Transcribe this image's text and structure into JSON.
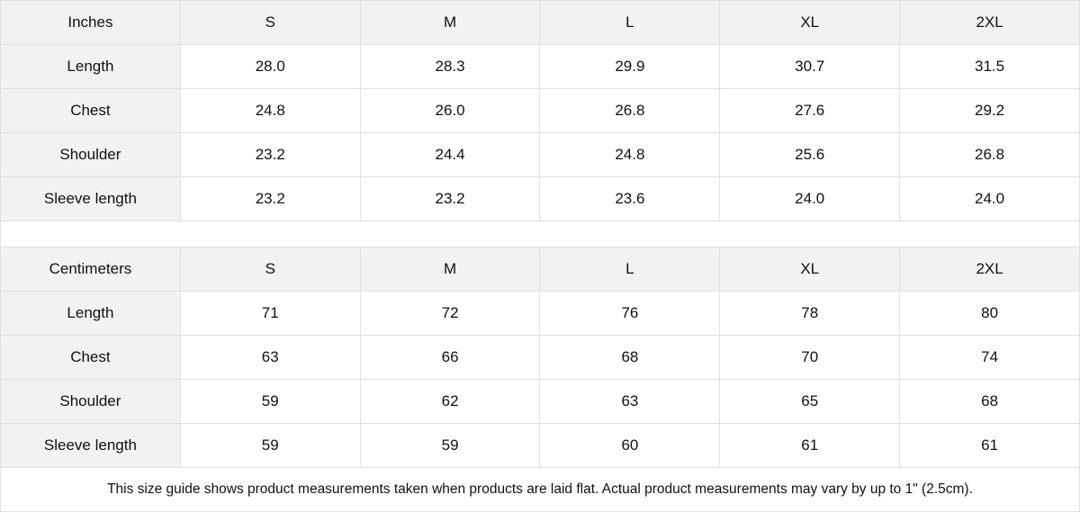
{
  "tables": [
    {
      "unit": "Inches",
      "sizes": [
        "S",
        "M",
        "L",
        "XL",
        "2XL"
      ],
      "rows": [
        {
          "label": "Length",
          "values": [
            "28.0",
            "28.3",
            "29.9",
            "30.7",
            "31.5"
          ]
        },
        {
          "label": "Chest",
          "values": [
            "24.8",
            "26.0",
            "26.8",
            "27.6",
            "29.2"
          ]
        },
        {
          "label": "Shoulder",
          "values": [
            "23.2",
            "24.4",
            "24.8",
            "25.6",
            "26.8"
          ]
        },
        {
          "label": "Sleeve length",
          "values": [
            "23.2",
            "23.2",
            "23.6",
            "24.0",
            "24.0"
          ]
        }
      ]
    },
    {
      "unit": "Centimeters",
      "sizes": [
        "S",
        "M",
        "L",
        "XL",
        "2XL"
      ],
      "rows": [
        {
          "label": "Length",
          "values": [
            "71",
            "72",
            "76",
            "78",
            "80"
          ]
        },
        {
          "label": "Chest",
          "values": [
            "63",
            "66",
            "68",
            "70",
            "74"
          ]
        },
        {
          "label": "Shoulder",
          "values": [
            "59",
            "62",
            "63",
            "65",
            "68"
          ]
        },
        {
          "label": "Sleeve length",
          "values": [
            "59",
            "59",
            "60",
            "61",
            "61"
          ]
        }
      ]
    }
  ],
  "footnote": "This size guide shows product measurements taken when products are laid flat.  Actual product measurements may vary by up to 1\" (2.5cm).",
  "colors": {
    "header_bg": "#f2f2f2",
    "border": "#e0e0e0",
    "text": "#111111"
  }
}
